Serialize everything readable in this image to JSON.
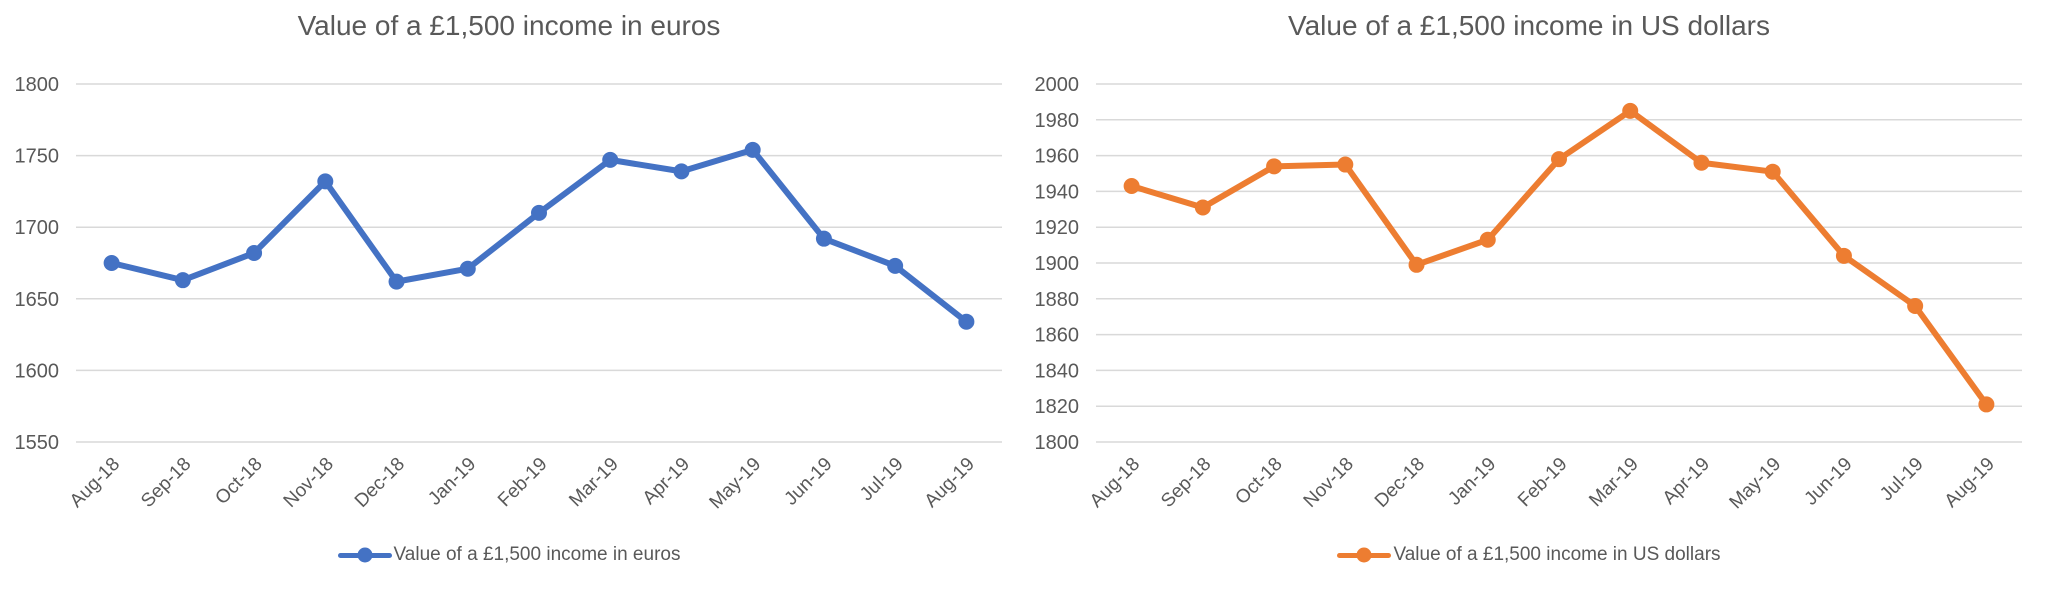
{
  "page": {
    "background": "#ffffff"
  },
  "chart_data": [
    {
      "type": "line",
      "title": "Value of a £1,500 income in euros",
      "legend_label": "Value of a £1,500 income in euros",
      "legend_position": "bottom",
      "series_color": "#4472C4",
      "categories": [
        "Aug-18",
        "Sep-18",
        "Oct-18",
        "Nov-18",
        "Dec-18",
        "Jan-19",
        "Feb-19",
        "Mar-19",
        "Apr-19",
        "May-19",
        "Jun-19",
        "Jul-19",
        "Aug-19"
      ],
      "values": [
        1675,
        1663,
        1682,
        1732,
        1662,
        1671,
        1710,
        1747,
        1739,
        1754,
        1692,
        1673,
        1634
      ],
      "ylim": [
        1550,
        1800
      ],
      "y_tick_step": 50,
      "y_tick_labels": [
        "1550",
        "1600",
        "1650",
        "1700",
        "1750",
        "1800"
      ],
      "grid": "horizontal-only",
      "gridline_color": "#D9D9D9",
      "axis_text_color": "#595959",
      "marker": "circle",
      "x_label_rotation_deg": -45
    },
    {
      "type": "line",
      "title": "Value of a £1,500 income in US dollars",
      "legend_label": "Value of a £1,500 income in US dollars",
      "legend_position": "bottom",
      "series_color": "#ED7D31",
      "categories": [
        "Aug-18",
        "Sep-18",
        "Oct-18",
        "Nov-18",
        "Dec-18",
        "Jan-19",
        "Feb-19",
        "Mar-19",
        "Apr-19",
        "May-19",
        "Jun-19",
        "Jul-19",
        "Aug-19"
      ],
      "values": [
        1943,
        1931,
        1954,
        1955,
        1899,
        1913,
        1958,
        1985,
        1956,
        1951,
        1904,
        1876,
        1821
      ],
      "ylim": [
        1800,
        2000
      ],
      "y_tick_step": 20,
      "y_tick_labels": [
        "1800",
        "1820",
        "1840",
        "1860",
        "1880",
        "1900",
        "1920",
        "1940",
        "1960",
        "1980",
        "2000"
      ],
      "grid": "horizontal-only",
      "gridline_color": "#D9D9D9",
      "axis_text_color": "#595959",
      "marker": "circle",
      "x_label_rotation_deg": -45
    }
  ]
}
